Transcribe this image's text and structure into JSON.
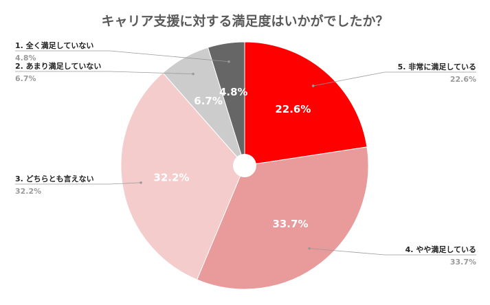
{
  "chart_data": {
    "type": "pie",
    "title": "キャリア支援に対する満足度はいかがでしたか？",
    "categories": [
      "5. 非常に満足している",
      "4. やや満足している",
      "3. どちらとも言えない",
      "2. あまり満足していない",
      "1. 全く満足していない"
    ],
    "values": [
      22.6,
      33.7,
      32.2,
      6.7,
      4.8
    ],
    "value_labels": [
      "22.6%",
      "33.7%",
      "32.2%",
      "6.7%",
      "4.8%"
    ],
    "legend_values": [
      "22.6%",
      "33.7%",
      "32.2%",
      "6.7%",
      "4.8%"
    ],
    "colors": [
      "#ff0000",
      "#e99a9a",
      "#f4cccc",
      "#cccccc",
      "#666666"
    ],
    "start": "12 o'clock",
    "direction": "clockwise",
    "center_hole": true
  }
}
